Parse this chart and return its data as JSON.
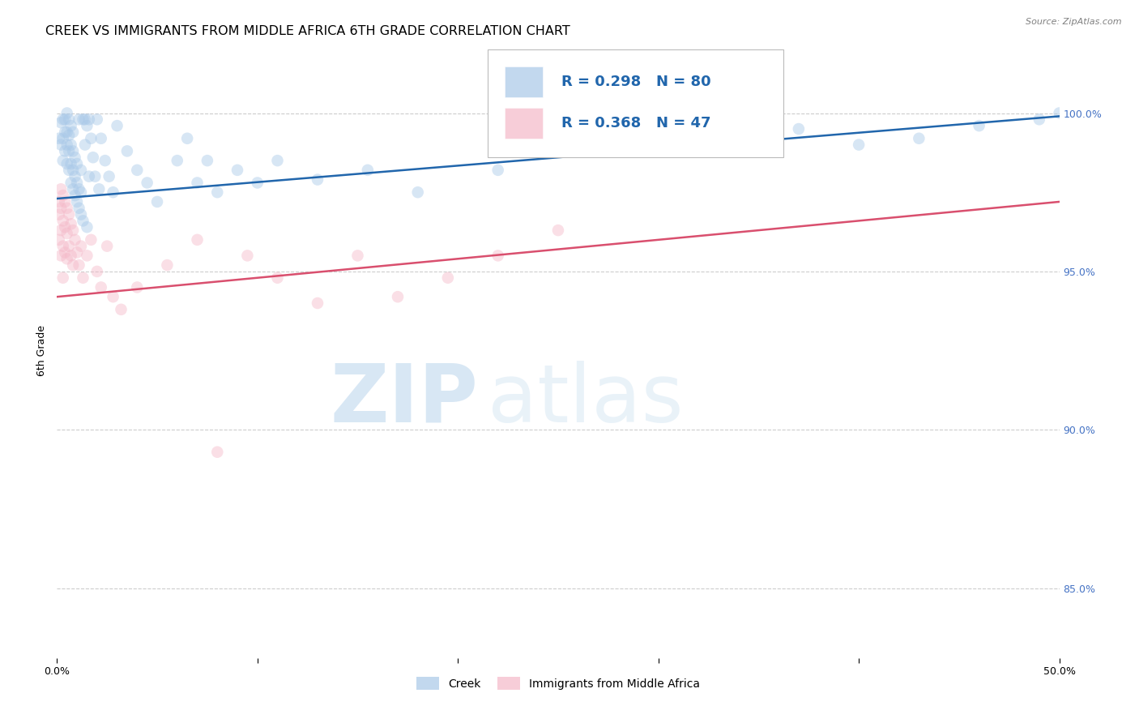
{
  "title": "CREEK VS IMMIGRANTS FROM MIDDLE AFRICA 6TH GRADE CORRELATION CHART",
  "source": "Source: ZipAtlas.com",
  "ylabel": "6th Grade",
  "y_tick_labels": [
    "85.0%",
    "90.0%",
    "95.0%",
    "100.0%"
  ],
  "y_tick_values": [
    0.85,
    0.9,
    0.95,
    1.0
  ],
  "x_min": 0.0,
  "x_max": 0.5,
  "y_min": 0.828,
  "y_max": 1.022,
  "legend_r_blue": "R = 0.298",
  "legend_n_blue": "N = 80",
  "legend_r_pink": "R = 0.368",
  "legend_n_pink": "N = 47",
  "blue_color": "#a8c8e8",
  "pink_color": "#f4b8c8",
  "blue_line_color": "#2166ac",
  "pink_line_color": "#d94f6e",
  "blue_scatter_x": [
    0.001,
    0.002,
    0.002,
    0.003,
    0.003,
    0.003,
    0.004,
    0.004,
    0.004,
    0.005,
    0.005,
    0.005,
    0.005,
    0.006,
    0.006,
    0.006,
    0.006,
    0.007,
    0.007,
    0.007,
    0.007,
    0.008,
    0.008,
    0.008,
    0.008,
    0.009,
    0.009,
    0.009,
    0.01,
    0.01,
    0.01,
    0.011,
    0.011,
    0.011,
    0.012,
    0.012,
    0.012,
    0.013,
    0.013,
    0.014,
    0.014,
    0.015,
    0.015,
    0.016,
    0.016,
    0.017,
    0.018,
    0.019,
    0.02,
    0.021,
    0.022,
    0.024,
    0.026,
    0.028,
    0.03,
    0.035,
    0.04,
    0.045,
    0.05,
    0.06,
    0.065,
    0.07,
    0.075,
    0.08,
    0.09,
    0.1,
    0.11,
    0.13,
    0.155,
    0.18,
    0.22,
    0.25,
    0.29,
    0.33,
    0.37,
    0.4,
    0.43,
    0.46,
    0.49,
    0.5
  ],
  "blue_scatter_y": [
    0.992,
    0.99,
    0.997,
    0.985,
    0.992,
    0.998,
    0.988,
    0.994,
    0.998,
    0.984,
    0.99,
    0.994,
    1.0,
    0.982,
    0.988,
    0.993,
    0.998,
    0.978,
    0.984,
    0.99,
    0.996,
    0.976,
    0.982,
    0.988,
    0.994,
    0.974,
    0.98,
    0.986,
    0.972,
    0.978,
    0.984,
    0.97,
    0.976,
    0.998,
    0.968,
    0.975,
    0.982,
    0.966,
    0.998,
    0.99,
    0.998,
    0.964,
    0.996,
    0.98,
    0.998,
    0.992,
    0.986,
    0.98,
    0.998,
    0.976,
    0.992,
    0.985,
    0.98,
    0.975,
    0.996,
    0.988,
    0.982,
    0.978,
    0.972,
    0.985,
    0.992,
    0.978,
    0.985,
    0.975,
    0.982,
    0.978,
    0.985,
    0.979,
    0.982,
    0.975,
    0.982,
    0.988,
    0.99,
    0.992,
    0.995,
    0.99,
    0.992,
    0.996,
    0.998,
    1.0
  ],
  "pink_scatter_x": [
    0.001,
    0.001,
    0.001,
    0.002,
    0.002,
    0.002,
    0.002,
    0.003,
    0.003,
    0.003,
    0.003,
    0.004,
    0.004,
    0.004,
    0.005,
    0.005,
    0.005,
    0.006,
    0.006,
    0.007,
    0.007,
    0.008,
    0.008,
    0.009,
    0.01,
    0.011,
    0.012,
    0.013,
    0.015,
    0.017,
    0.02,
    0.022,
    0.025,
    0.028,
    0.032,
    0.04,
    0.055,
    0.07,
    0.08,
    0.095,
    0.11,
    0.13,
    0.15,
    0.17,
    0.195,
    0.22,
    0.25
  ],
  "pink_scatter_y": [
    0.972,
    0.968,
    0.96,
    0.976,
    0.97,
    0.963,
    0.955,
    0.974,
    0.966,
    0.958,
    0.948,
    0.972,
    0.964,
    0.956,
    0.97,
    0.962,
    0.954,
    0.968,
    0.958,
    0.965,
    0.955,
    0.963,
    0.952,
    0.96,
    0.956,
    0.952,
    0.958,
    0.948,
    0.955,
    0.96,
    0.95,
    0.945,
    0.958,
    0.942,
    0.938,
    0.945,
    0.952,
    0.96,
    0.893,
    0.955,
    0.948,
    0.94,
    0.955,
    0.942,
    0.948,
    0.955,
    0.963
  ],
  "blue_trend_x": [
    0.0,
    0.5
  ],
  "blue_trend_y": [
    0.973,
    0.999
  ],
  "pink_trend_x": [
    0.0,
    0.5
  ],
  "pink_trend_y": [
    0.942,
    0.972
  ],
  "watermark_zip": "ZIP",
  "watermark_atlas": "atlas",
  "background_color": "#ffffff",
  "grid_color": "#cccccc",
  "title_fontsize": 11.5,
  "axis_label_fontsize": 9,
  "tick_fontsize": 9,
  "legend_fontsize": 13,
  "scatter_size": 110,
  "scatter_alpha": 0.45,
  "line_width": 1.8,
  "legend_label_blue": "Creek",
  "legend_label_pink": "Immigrants from Middle Africa",
  "x_ticks": [
    0.0,
    0.1,
    0.2,
    0.3,
    0.4,
    0.5
  ],
  "x_tick_labels_show": [
    "0.0%",
    "",
    "",
    "",
    "",
    "50.0%"
  ]
}
